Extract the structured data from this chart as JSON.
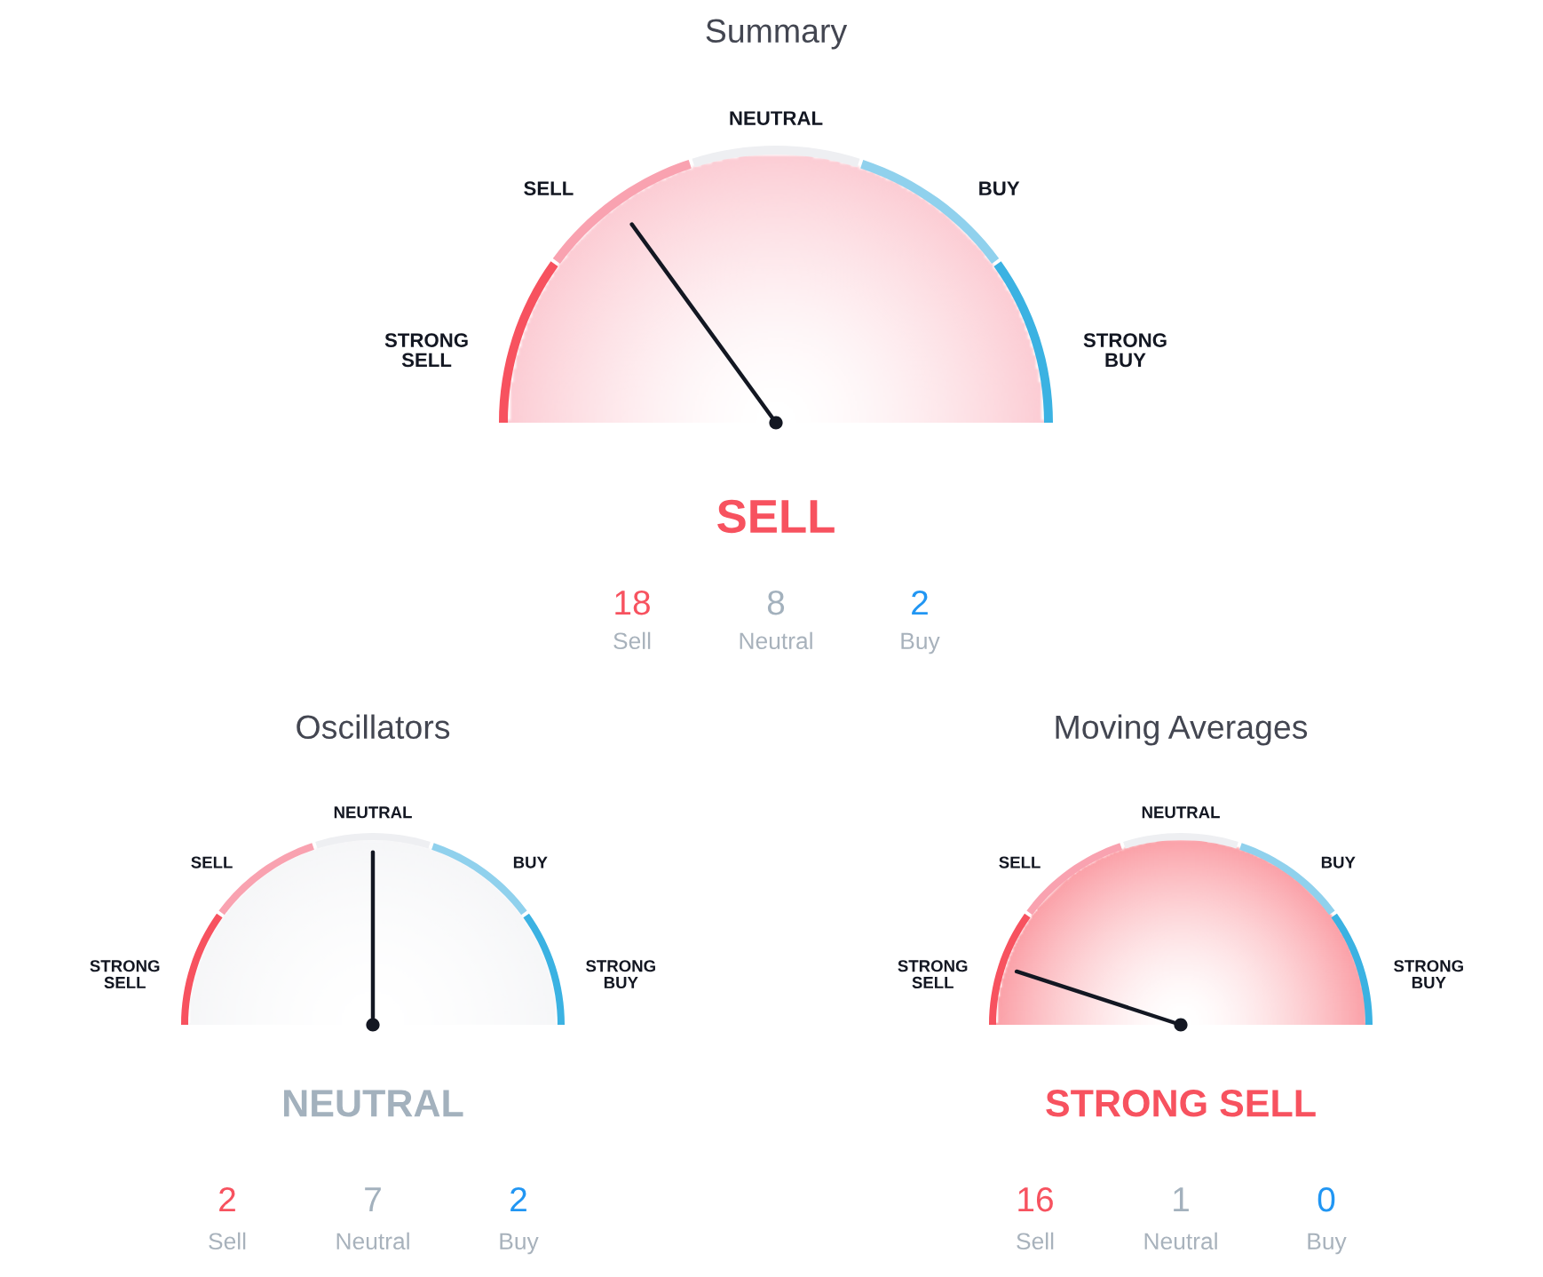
{
  "chart_data": [
    {
      "type": "donut",
      "title": "Summary",
      "categories": [
        "STRONG SELL",
        "SELL",
        "NEUTRAL",
        "BUY",
        "STRONG BUY"
      ],
      "values": [
        20,
        20,
        20,
        20,
        20
      ],
      "colors": [
        "#f7525f",
        "#f9a2b0",
        "#eeeff2",
        "#90d1ed",
        "#3bb2e2"
      ],
      "needle": "SELL",
      "annotations": [
        "SELL",
        "18",
        "Sell",
        "8",
        "Neutral",
        "2",
        "Buy"
      ]
    },
    {
      "type": "donut",
      "title": "Oscillators",
      "categories": [
        "STRONG SELL",
        "SELL",
        "NEUTRAL",
        "BUY",
        "STRONG BUY"
      ],
      "values": [
        20,
        20,
        20,
        20,
        20
      ],
      "colors": [
        "#f7525f",
        "#f9a2b0",
        "#eeeff2",
        "#90d1ed",
        "#3bb2e2"
      ],
      "needle": "NEUTRAL",
      "annotations": [
        "NEUTRAL",
        "2",
        "Sell",
        "7",
        "Neutral",
        "2",
        "Buy"
      ]
    },
    {
      "type": "donut",
      "title": "Moving Averages",
      "categories": [
        "STRONG SELL",
        "SELL",
        "NEUTRAL",
        "BUY",
        "STRONG BUY"
      ],
      "values": [
        20,
        20,
        20,
        20,
        20
      ],
      "colors": [
        "#f7525f",
        "#f9a2b0",
        "#eeeff2",
        "#90d1ed",
        "#3bb2e2"
      ],
      "needle": "STRONG SELL",
      "annotations": [
        "STRONG SELL",
        "16",
        "Sell",
        "1",
        "Neutral",
        "0",
        "Buy"
      ]
    }
  ]
}
